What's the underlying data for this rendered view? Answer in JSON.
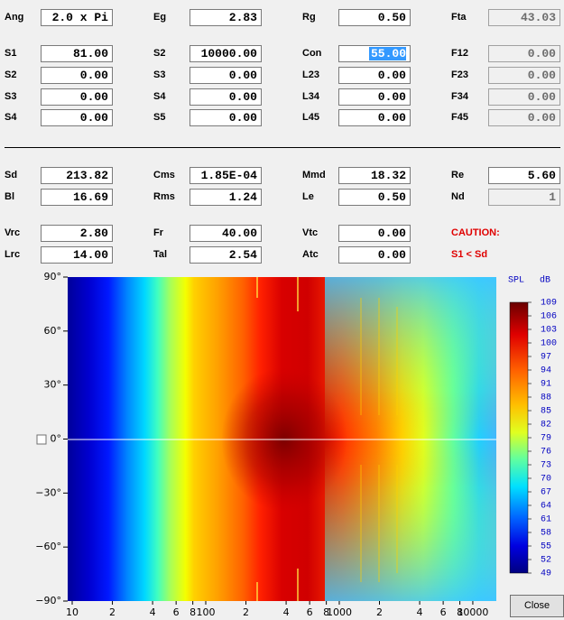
{
  "fields": [
    [
      {
        "label": "Ang",
        "value": "2.0 x Pi"
      },
      {
        "label": "Eg",
        "value": "2.83"
      },
      {
        "label": "Rg",
        "value": "0.50"
      },
      {
        "label": "Fta",
        "value": "43.03",
        "disabled": true
      }
    ],
    [
      {
        "label": "S1",
        "value": "81.00"
      },
      {
        "label": "S2",
        "value": "10000.00"
      },
      {
        "label": "Con",
        "value": "55.00",
        "selected": true
      },
      {
        "label": "F12",
        "value": "0.00",
        "disabled": true
      }
    ],
    [
      {
        "label": "S2",
        "value": "0.00"
      },
      {
        "label": "S3",
        "value": "0.00"
      },
      {
        "label": "L23",
        "value": "0.00"
      },
      {
        "label": "F23",
        "value": "0.00",
        "disabled": true
      }
    ],
    [
      {
        "label": "S3",
        "value": "0.00"
      },
      {
        "label": "S4",
        "value": "0.00"
      },
      {
        "label": "L34",
        "value": "0.00"
      },
      {
        "label": "F34",
        "value": "0.00",
        "disabled": true
      }
    ],
    [
      {
        "label": "S4",
        "value": "0.00"
      },
      {
        "label": "S5",
        "value": "0.00"
      },
      {
        "label": "L45",
        "value": "0.00"
      },
      {
        "label": "F45",
        "value": "0.00",
        "disabled": true
      }
    ],
    [
      {
        "label": "Sd",
        "value": "213.82"
      },
      {
        "label": "Cms",
        "value": "1.85E-04"
      },
      {
        "label": "Mmd",
        "value": "18.32"
      },
      {
        "label": "Re",
        "value": "5.60"
      }
    ],
    [
      {
        "label": "Bl",
        "value": "16.69"
      },
      {
        "label": "Rms",
        "value": "1.24"
      },
      {
        "label": "Le",
        "value": "0.50"
      },
      {
        "label": "Nd",
        "value": "1",
        "disabled": true
      }
    ],
    [
      {
        "label": "Vrc",
        "value": "2.80"
      },
      {
        "label": "Fr",
        "value": "40.00"
      },
      {
        "label": "Vtc",
        "value": "0.00"
      },
      {
        "warning": "CAUTION:"
      }
    ],
    [
      {
        "label": "Lrc",
        "value": "14.00"
      },
      {
        "label": "Tal",
        "value": "2.54"
      },
      {
        "label": "Atc",
        "value": "0.00"
      },
      {
        "warning": "S1 < Sd"
      }
    ]
  ],
  "plot": {
    "yticks": [
      "90°",
      "60°",
      "30°",
      "0°",
      "−30°",
      "−60°",
      "−90°"
    ],
    "xlim": [
      9.25,
      15000
    ],
    "xticks": [
      {
        "value": 10,
        "label": "10"
      },
      {
        "value": 20,
        "label": "2"
      },
      {
        "value": 40,
        "label": "4"
      },
      {
        "value": 60,
        "label": "6"
      },
      {
        "value": 80,
        "label": "8"
      },
      {
        "value": 100,
        "label": "100"
      },
      {
        "value": 200,
        "label": "2"
      },
      {
        "value": 400,
        "label": "4"
      },
      {
        "value": 600,
        "label": "6"
      },
      {
        "value": 800,
        "label": "8"
      },
      {
        "value": 1000,
        "label": "1000"
      },
      {
        "value": 2000,
        "label": "2"
      },
      {
        "value": 4000,
        "label": "4"
      },
      {
        "value": 6000,
        "label": "6"
      },
      {
        "value": 8000,
        "label": "8"
      },
      {
        "value": 10000,
        "label": "10000"
      }
    ],
    "colorbar": {
      "title": "SPL",
      "unit": "dB",
      "labels": [
        "109",
        "106",
        "103",
        "100",
        "97",
        "94",
        "91",
        "88",
        "85",
        "82",
        "79",
        "76",
        "73",
        "70",
        "67",
        "64",
        "61",
        "58",
        "55",
        "52",
        "49"
      ]
    }
  },
  "close": "Close"
}
